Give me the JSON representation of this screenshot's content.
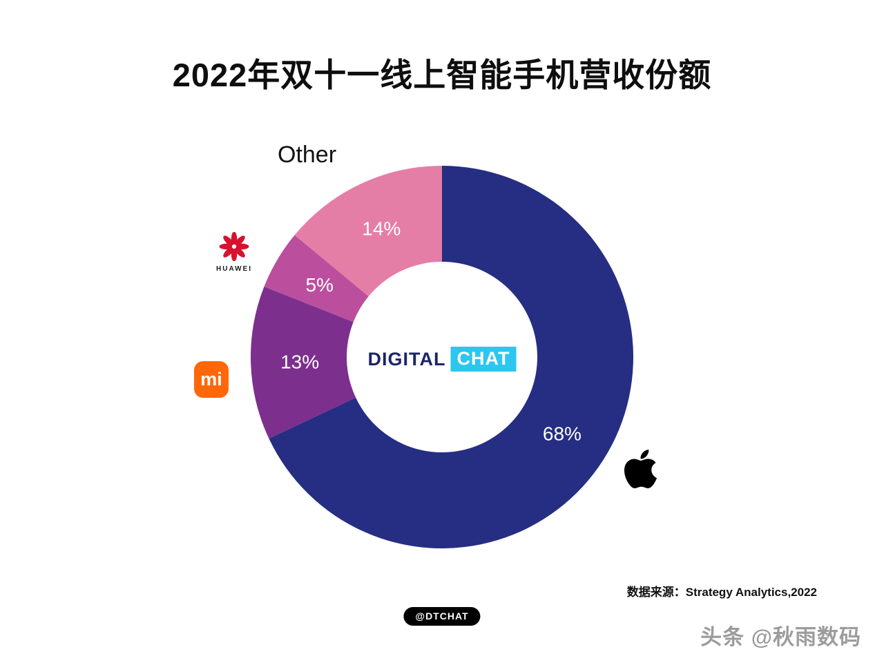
{
  "title": "2022年双十一线上智能手机营收份额",
  "chart_data": {
    "type": "pie",
    "subtype": "donut",
    "title": "2022年双十一线上智能手机营收份额",
    "categories": [
      "Apple",
      "Xiaomi",
      "Huawei",
      "Other"
    ],
    "values": [
      68,
      13,
      5,
      14
    ],
    "value_labels": [
      "68%",
      "13%",
      "5%",
      "14%"
    ],
    "colors": [
      "#252e82",
      "#7d2f8d",
      "#bb4f9e",
      "#e57ea7"
    ],
    "start_angle": "12-oclock",
    "direction": "clockwise",
    "donut_hole_ratio": 0.5,
    "legend_position": "brand logos placed around ring"
  },
  "labels": {
    "other": "Other",
    "huawei": "HUAWEI",
    "xiaomi": "mi"
  },
  "center_logo": {
    "digital": "DIGITAL",
    "chat": "CHAT"
  },
  "source_note": "数据来源：Strategy Analytics,2022",
  "watermark_pill": "@DTCHAT",
  "footer_brand": "头条 @秋雨数码",
  "brand_colors": {
    "huawei_red": "#d8122e",
    "xiaomi_orange": "#ff6709",
    "chat_cyan": "#2cc6ef",
    "digital_navy": "#1c2566",
    "apple_black": "#000000"
  }
}
